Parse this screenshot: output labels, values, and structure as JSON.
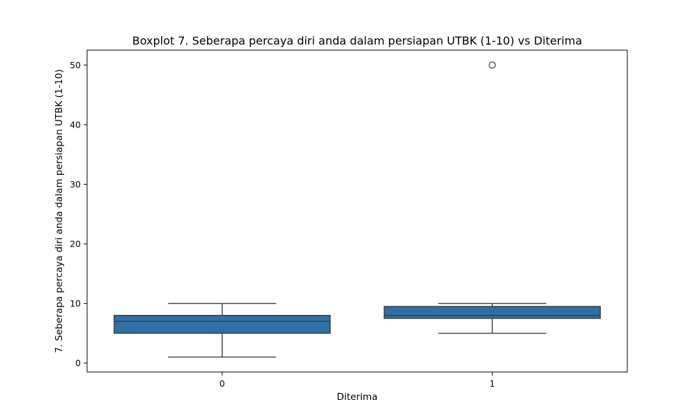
{
  "chart_data": {
    "type": "boxplot",
    "title": "Boxplot 7. Seberapa percaya diri anda dalam persiapan UTBK (1-10) vs Diterima",
    "xlabel": "Diterima",
    "ylabel": "7. Seberapa percaya diri anda dalam persiapan UTBK (1-10)",
    "categories": [
      "0",
      "1"
    ],
    "ylim": [
      -1.5,
      52.5
    ],
    "yticks": [
      0,
      10,
      20,
      30,
      40,
      50
    ],
    "grid": false,
    "box_color": "#2e6fa6",
    "line_color": "#3d3d3d",
    "boxes": [
      {
        "category": "0",
        "whisker_low": 1,
        "q1": 5,
        "median": 7,
        "q3": 8,
        "whisker_high": 10,
        "outliers": []
      },
      {
        "category": "1",
        "whisker_low": 5,
        "q1": 7.5,
        "median": 8,
        "q3": 9.5,
        "whisker_high": 10,
        "outliers": [
          50
        ]
      }
    ]
  }
}
